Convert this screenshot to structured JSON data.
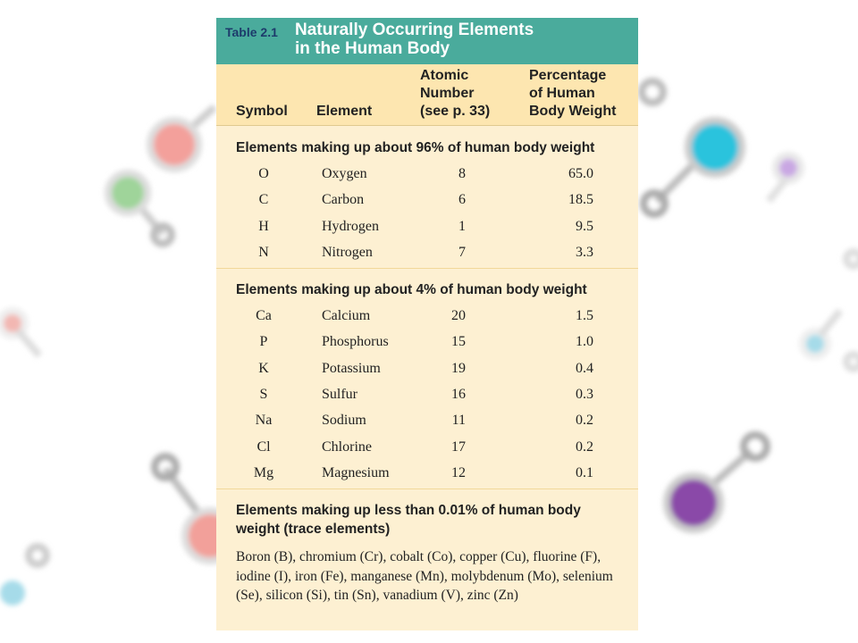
{
  "table": {
    "label": "Table 2.1",
    "title": [
      "Naturally Occurring Elements",
      "in the Human Body"
    ],
    "columns": [
      [
        "Symbol"
      ],
      [
        "Element"
      ],
      [
        "Atomic",
        "Number",
        "(see p. 33)"
      ],
      [
        "Percentage",
        "of Human",
        "Body Weight"
      ]
    ],
    "sections": [
      {
        "heading": "Elements making up about 96% of human body weight",
        "rows": [
          [
            "O",
            "Oxygen",
            8,
            "65.0"
          ],
          [
            "C",
            "Carbon",
            6,
            "18.5"
          ],
          [
            "H",
            "Hydrogen",
            1,
            "9.5"
          ],
          [
            "N",
            "Nitrogen",
            7,
            "3.3"
          ]
        ]
      },
      {
        "heading": "Elements making up about 4% of human body weight",
        "rows": [
          [
            "Ca",
            "Calcium",
            20,
            "1.5"
          ],
          [
            "P",
            "Phosphorus",
            15,
            "1.0"
          ],
          [
            "K",
            "Potassium",
            19,
            "0.4"
          ],
          [
            "S",
            "Sulfur",
            16,
            "0.3"
          ],
          [
            "Na",
            "Sodium",
            11,
            "0.2"
          ],
          [
            "Cl",
            "Chlorine",
            17,
            "0.2"
          ],
          [
            "Mg",
            "Magnesium",
            12,
            "0.1"
          ]
        ]
      },
      {
        "heading": "Elements making up less than 0.01% of human body weight (trace elements)",
        "text": "Boron (B), chromium (Cr), cobalt (Co), copper (Cu), fluorine (F), iodine (I), iron (Fe), manganese (Mn), molybdenum (Mo), selenium (Se), silicon (Si), tin (Sn), vanadium (V), zinc (Zn)"
      }
    ]
  }
}
